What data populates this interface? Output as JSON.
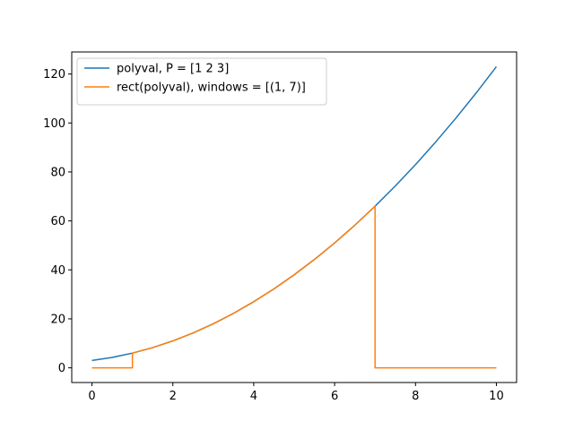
{
  "chart_data": {
    "type": "line",
    "title": "",
    "xlabel": "",
    "ylabel": "",
    "xlim": [
      -0.5,
      10.5
    ],
    "ylim": [
      -6.0,
      129.0
    ],
    "xticks": [
      0,
      2,
      4,
      6,
      8,
      10
    ],
    "yticks": [
      0,
      20,
      40,
      60,
      80,
      100,
      120
    ],
    "grid": false,
    "legend_position": "top-left",
    "series": [
      {
        "name": "polyval, P = [1 2 3]",
        "color": "#1f77b4",
        "x": [
          0,
          0.5,
          1,
          1.5,
          2,
          2.5,
          3,
          3.5,
          4,
          4.5,
          5,
          5.5,
          6,
          6.5,
          7,
          7.5,
          8,
          8.5,
          9,
          9.5,
          10
        ],
        "y": [
          3,
          4.25,
          6,
          8.25,
          11,
          14.25,
          18,
          22.25,
          27,
          32.25,
          38,
          44.25,
          51,
          58.25,
          66,
          74.25,
          83,
          92.25,
          102,
          112.25,
          123
        ]
      },
      {
        "name": "rect(polyval), windows = [(1, 7)]",
        "color": "#ff7f0e",
        "x": [
          0,
          1,
          1,
          1.5,
          2,
          2.5,
          3,
          3.5,
          4,
          4.5,
          5,
          5.5,
          6,
          6.5,
          7,
          7,
          10
        ],
        "y": [
          0,
          0,
          6,
          8.25,
          11,
          14.25,
          18,
          22.25,
          27,
          32.25,
          38,
          44.25,
          51,
          58.25,
          66,
          0,
          0
        ]
      }
    ]
  }
}
